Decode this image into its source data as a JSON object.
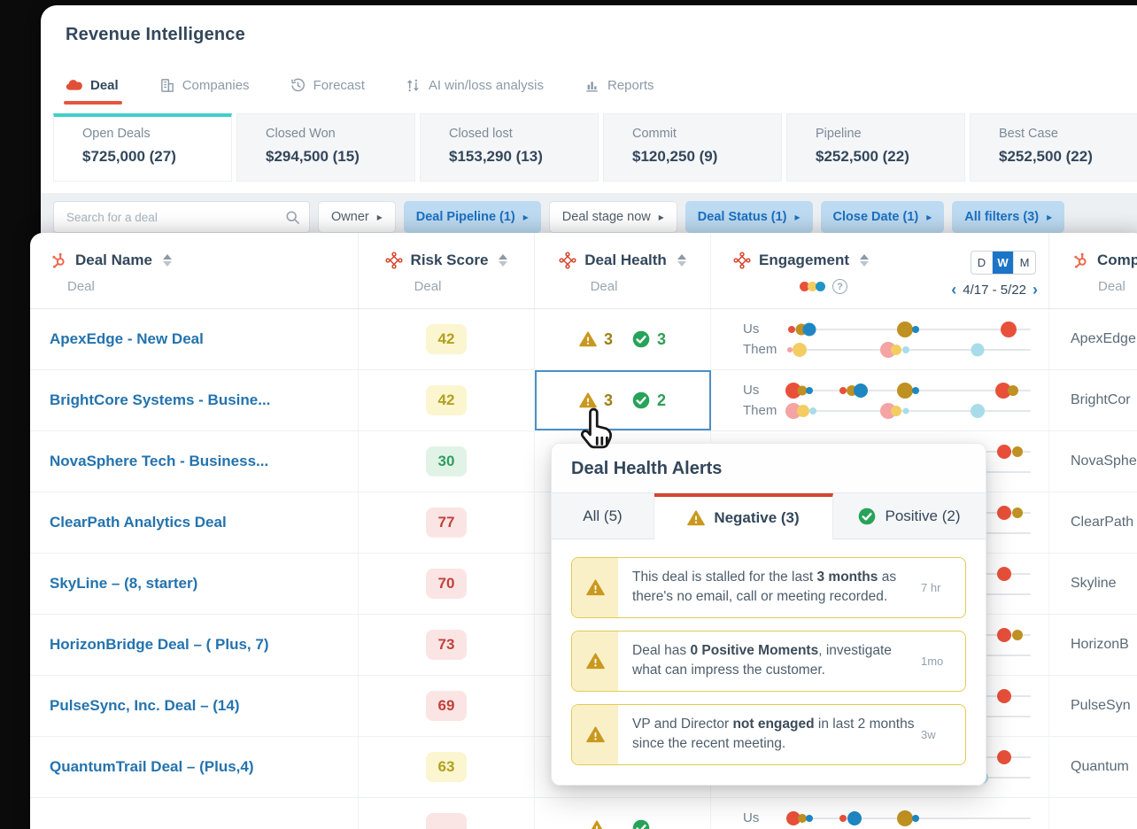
{
  "app": {
    "title": "Revenue Intelligence"
  },
  "nav": {
    "tabs": [
      {
        "label": "Deal",
        "icon": "deal-icon",
        "active": true
      },
      {
        "label": "Companies",
        "icon": "companies-icon",
        "active": false
      },
      {
        "label": "Forecast",
        "icon": "forecast-icon",
        "active": false
      },
      {
        "label": "AI win/loss analysis",
        "icon": "win-loss-icon",
        "active": false
      },
      {
        "label": "Reports",
        "icon": "reports-icon",
        "active": false
      }
    ]
  },
  "summary_cards": [
    {
      "label": "Open Deals",
      "value": "$725,000 (27)",
      "active": true
    },
    {
      "label": "Closed Won",
      "value": "$294,500 (15)",
      "active": false
    },
    {
      "label": "Closed lost",
      "value": "$153,290 (13)",
      "active": false
    },
    {
      "label": "Commit",
      "value": "$120,250 (9)",
      "active": false
    },
    {
      "label": "Pipeline",
      "value": "$252,500 (22)",
      "active": false
    },
    {
      "label": "Best Case",
      "value": "$252,500 (22)",
      "active": false
    }
  ],
  "filters": {
    "search_placeholder": "Search for a deal",
    "pills": [
      {
        "label": "Owner",
        "style": "plain"
      },
      {
        "label": "Deal Pipeline (1)",
        "style": "active"
      },
      {
        "label": "Deal stage now",
        "style": "plain"
      },
      {
        "label": "Deal Status (1)",
        "style": "active"
      },
      {
        "label": "Close Date (1)",
        "style": "active"
      },
      {
        "label": "All filters (3)",
        "style": "active"
      }
    ]
  },
  "table": {
    "headers": {
      "deal_name": {
        "label": "Deal Name",
        "sub": "Deal"
      },
      "risk_score": {
        "label": "Risk Score",
        "sub": "Deal"
      },
      "deal_health": {
        "label": "Deal Health",
        "sub": "Deal"
      },
      "engagement": {
        "label": "Engagement",
        "period_options": [
          "D",
          "W",
          "M"
        ],
        "period_selected": "W",
        "date_range": "4/17 - 5/22"
      },
      "company": {
        "label": "Comp",
        "sub": "Deal"
      }
    },
    "eng_labels": {
      "us": "Us",
      "them": "Them"
    },
    "rows": [
      {
        "name": "ApexEdge - New Deal",
        "company": "ApexEdge",
        "risk": {
          "value": "42",
          "level": "yellow"
        },
        "health": {
          "neg": "3",
          "pos": "3"
        },
        "selected": false,
        "eng": {
          "us": [
            {
              "x": 0.01,
              "c": "red",
              "r": 4
            },
            {
              "x": 0.05,
              "c": "gold",
              "r": 6.5
            },
            {
              "x": 0.085,
              "c": "blue",
              "r": 7.5
            },
            {
              "x": 0.48,
              "c": "gold",
              "r": 9
            },
            {
              "x": 0.525,
              "c": "blue",
              "r": 4
            },
            {
              "x": 0.91,
              "c": "red",
              "r": 9
            }
          ],
          "them": [
            {
              "x": 0.005,
              "c": "pink",
              "r": 3
            },
            {
              "x": 0.045,
              "c": "yellow",
              "r": 8
            },
            {
              "x": 0.41,
              "c": "pink",
              "r": 9
            },
            {
              "x": 0.445,
              "c": "yellow",
              "r": 6
            },
            {
              "x": 0.485,
              "c": "lblue",
              "r": 4
            },
            {
              "x": 0.78,
              "c": "lblue",
              "r": 7.5
            }
          ]
        }
      },
      {
        "name": "BrightCore Systems - Busine...",
        "company": "BrightCor",
        "risk": {
          "value": "42",
          "level": "yellow"
        },
        "health": {
          "neg": "3",
          "pos": "2"
        },
        "selected": true,
        "eng": {
          "us": [
            {
              "x": 0.02,
              "c": "red",
              "r": 9
            },
            {
              "x": 0.055,
              "c": "gold",
              "r": 5.5
            },
            {
              "x": 0.085,
              "c": "blue",
              "r": 4
            },
            {
              "x": 0.225,
              "c": "red",
              "r": 4
            },
            {
              "x": 0.26,
              "c": "gold",
              "r": 6
            },
            {
              "x": 0.295,
              "c": "blue",
              "r": 8
            },
            {
              "x": 0.48,
              "c": "gold",
              "r": 9
            },
            {
              "x": 0.525,
              "c": "blue",
              "r": 4
            },
            {
              "x": 0.885,
              "c": "red",
              "r": 9
            },
            {
              "x": 0.925,
              "c": "gold",
              "r": 6
            }
          ],
          "them": [
            {
              "x": 0.02,
              "c": "pink",
              "r": 9
            },
            {
              "x": 0.06,
              "c": "yellow",
              "r": 7
            },
            {
              "x": 0.1,
              "c": "lblue",
              "r": 4
            },
            {
              "x": 0.41,
              "c": "pink",
              "r": 9
            },
            {
              "x": 0.445,
              "c": "yellow",
              "r": 6
            },
            {
              "x": 0.485,
              "c": "lblue",
              "r": 3.5
            },
            {
              "x": 0.78,
              "c": "lblue",
              "r": 8
            }
          ]
        }
      },
      {
        "name": "NovaSphere Tech - Business...",
        "company": "NovaSphe",
        "risk": {
          "value": "30",
          "level": "green"
        },
        "health": {
          "neg": "",
          "pos": ""
        },
        "selected": false,
        "eng": {
          "us": [
            {
              "x": 0.89,
              "c": "red",
              "r": 8
            },
            {
              "x": 0.945,
              "c": "gold",
              "r": 6
            }
          ],
          "them": []
        }
      },
      {
        "name": "ClearPath Analytics Deal",
        "company": "ClearPath",
        "risk": {
          "value": "77",
          "level": "red"
        },
        "health": {
          "neg": "",
          "pos": ""
        },
        "selected": false,
        "eng": {
          "us": [
            {
              "x": 0.89,
              "c": "red",
              "r": 8
            },
            {
              "x": 0.945,
              "c": "gold",
              "r": 6
            }
          ],
          "them": []
        }
      },
      {
        "name": "SkyLine – (8, starter)",
        "company": "Skyline",
        "risk": {
          "value": "70",
          "level": "red"
        },
        "health": {
          "neg": "",
          "pos": ""
        },
        "selected": false,
        "eng": {
          "us": [
            {
              "x": 0.89,
              "c": "red",
              "r": 8
            }
          ],
          "them": []
        }
      },
      {
        "name": "HorizonBridge Deal – ( Plus, 7)",
        "company": "HorizonB",
        "risk": {
          "value": "73",
          "level": "red"
        },
        "health": {
          "neg": "",
          "pos": ""
        },
        "selected": false,
        "eng": {
          "us": [
            {
              "x": 0.89,
              "c": "red",
              "r": 8
            },
            {
              "x": 0.945,
              "c": "gold",
              "r": 6
            }
          ],
          "them": []
        }
      },
      {
        "name": "PulseSync, Inc. Deal – (14)",
        "company": "PulseSyn",
        "risk": {
          "value": "69",
          "level": "red"
        },
        "health": {
          "neg": "",
          "pos": ""
        },
        "selected": false,
        "eng": {
          "us": [
            {
              "x": 0.89,
              "c": "red",
              "r": 8
            }
          ],
          "them": []
        }
      },
      {
        "name": "QuantumTrail Deal – (Plus,4)",
        "company": "Quantum",
        "risk": {
          "value": "63",
          "level": "yellow"
        },
        "health": {
          "neg": "",
          "pos": ""
        },
        "selected": false,
        "eng": {
          "us": [
            {
              "x": 0.89,
              "c": "red",
              "r": 8
            }
          ],
          "them": [
            {
              "x": 0.42,
              "c": "lblue",
              "r": 5
            },
            {
              "x": 0.8,
              "c": "lblue",
              "r": 7
            }
          ]
        }
      },
      {
        "name": "",
        "company": "",
        "risk": {
          "value": "",
          "level": "red"
        },
        "health": {
          "neg": "",
          "pos": ""
        },
        "selected": false,
        "eng": {
          "us": [
            {
              "x": 0.02,
              "c": "red",
              "r": 8
            },
            {
              "x": 0.055,
              "c": "gold",
              "r": 5
            },
            {
              "x": 0.085,
              "c": "blue",
              "r": 4
            },
            {
              "x": 0.225,
              "c": "red",
              "r": 4
            },
            {
              "x": 0.27,
              "c": "blue",
              "r": 8
            },
            {
              "x": 0.48,
              "c": "gold",
              "r": 9
            },
            {
              "x": 0.525,
              "c": "blue",
              "r": 4
            }
          ],
          "them": []
        }
      }
    ]
  },
  "popover": {
    "title": "Deal Health Alerts",
    "tabs": [
      {
        "label": "All (5)",
        "active": false
      },
      {
        "label": "Negative (3)",
        "icon": "warning-icon",
        "active": true
      },
      {
        "label": "Positive (2)",
        "icon": "check-icon",
        "active": false
      }
    ],
    "alerts": [
      {
        "time": "7 hr",
        "parts": [
          {
            "t": "This deal is stalled for the last "
          },
          {
            "t": "3 months",
            "b": true
          },
          {
            "t": " as there's no email, call or meeting recorded."
          }
        ]
      },
      {
        "time": "1mo",
        "parts": [
          {
            "t": "Deal has "
          },
          {
            "t": "0 Positive Moments",
            "b": true
          },
          {
            "t": ", investigate what can impress the customer."
          }
        ]
      },
      {
        "time": "3w",
        "parts": [
          {
            "t": "VP and Director "
          },
          {
            "t": "not engaged",
            "b": true
          },
          {
            "t": " in last 2 months since the recent meeting."
          }
        ]
      }
    ]
  },
  "colors": {
    "backdrop": "#0b0b0b",
    "accent_teal": "#3fd0c9",
    "brand_red": "#e4563f",
    "link_blue": "#2473ae",
    "pill_blue_bg": "#bcdaf1",
    "pill_blue_text": "#1b6fc0",
    "warning": "#c9991f",
    "positive": "#27a35a",
    "dots": {
      "red": "#e8503a",
      "gold": "#bf9122",
      "blue": "#1e87c2",
      "pink": "#f5a3a3",
      "yellow": "#f3cd62",
      "lblue": "#a9dcea"
    },
    "risk": {
      "yellow_bg": "#fbf5d0",
      "yellow_text": "#b1a01f",
      "green_bg": "#e1f3e7",
      "green_text": "#2f9e5f",
      "red_bg": "#fbe5e4",
      "red_text": "#c2413c"
    }
  }
}
